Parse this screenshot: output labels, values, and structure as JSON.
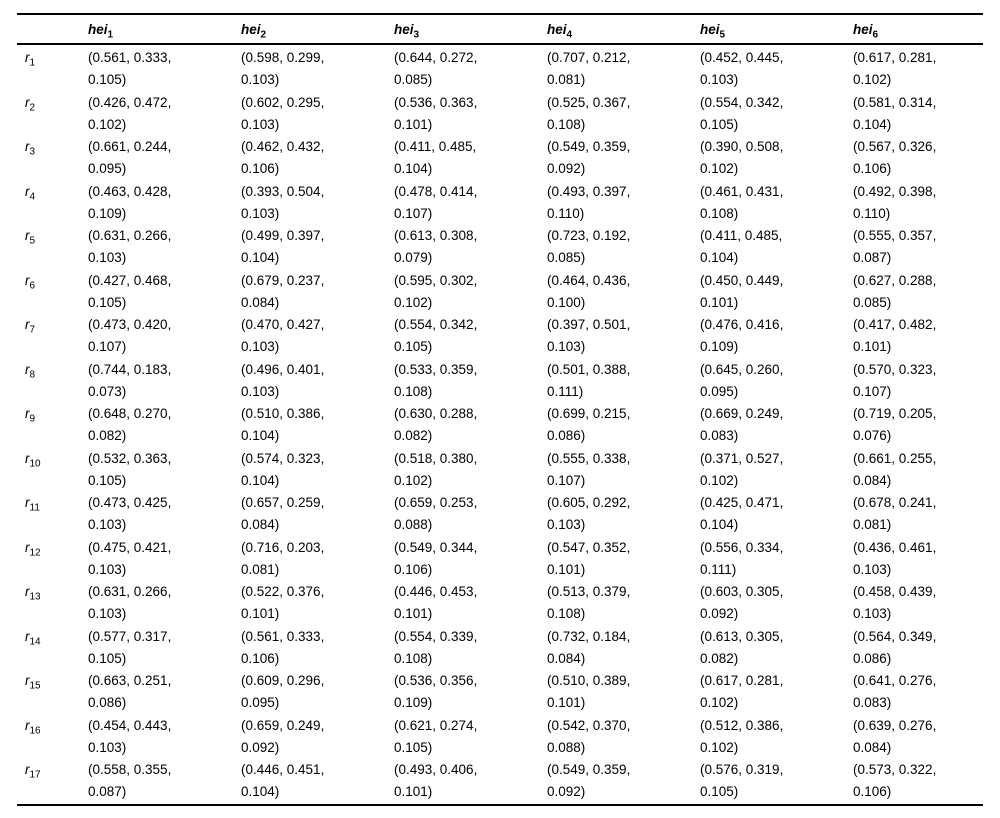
{
  "table": {
    "corner_label": "",
    "headers": [
      {
        "base": "hei",
        "sub": "1"
      },
      {
        "base": "hei",
        "sub": "2"
      },
      {
        "base": "hei",
        "sub": "3"
      },
      {
        "base": "hei",
        "sub": "4"
      },
      {
        "base": "hei",
        "sub": "5"
      },
      {
        "base": "hei",
        "sub": "6"
      }
    ],
    "rows": [
      {
        "label": {
          "base": "r",
          "sub": "1"
        },
        "cells": [
          [
            "0.561",
            "0.333",
            "0.105"
          ],
          [
            "0.598",
            "0.299",
            "0.103"
          ],
          [
            "0.644",
            "0.272",
            "0.085"
          ],
          [
            "0.707",
            "0.212",
            "0.081"
          ],
          [
            "0.452",
            "0.445",
            "0.103"
          ],
          [
            "0.617",
            "0.281",
            "0.102"
          ]
        ]
      },
      {
        "label": {
          "base": "r",
          "sub": "2"
        },
        "cells": [
          [
            "0.426",
            "0.472",
            "0.102"
          ],
          [
            "0.602",
            "0.295",
            "0.103"
          ],
          [
            "0.536",
            "0.363",
            "0.101"
          ],
          [
            "0.525",
            "0.367",
            "0.108"
          ],
          [
            "0.554",
            "0.342",
            "0.105"
          ],
          [
            "0.581",
            "0.314",
            "0.104"
          ]
        ]
      },
      {
        "label": {
          "base": "r",
          "sub": "3"
        },
        "cells": [
          [
            "0.661",
            "0.244",
            "0.095"
          ],
          [
            "0.462",
            "0.432",
            "0.106"
          ],
          [
            "0.411",
            "0.485",
            "0.104"
          ],
          [
            "0.549",
            "0.359",
            "0.092"
          ],
          [
            "0.390",
            "0.508",
            "0.102"
          ],
          [
            "0.567",
            "0.326",
            "0.106"
          ]
        ]
      },
      {
        "label": {
          "base": "r",
          "sub": "4"
        },
        "cells": [
          [
            "0.463",
            "0.428",
            "0.109"
          ],
          [
            "0.393",
            "0.504",
            "0.103"
          ],
          [
            "0.478",
            "0.414",
            "0.107"
          ],
          [
            "0.493",
            "0.397",
            "0.110"
          ],
          [
            "0.461",
            "0.431",
            "0.108"
          ],
          [
            "0.492",
            "0.398",
            "0.110"
          ]
        ]
      },
      {
        "label": {
          "base": "r",
          "sub": "5"
        },
        "cells": [
          [
            "0.631",
            "0.266",
            "0.103"
          ],
          [
            "0.499",
            "0.397",
            "0.104"
          ],
          [
            "0.613",
            "0.308",
            "0.079"
          ],
          [
            "0.723",
            "0.192",
            "0.085"
          ],
          [
            "0.411",
            "0.485",
            "0.104"
          ],
          [
            "0.555",
            "0.357",
            "0.087"
          ]
        ]
      },
      {
        "label": {
          "base": "r",
          "sub": "6"
        },
        "cells": [
          [
            "0.427",
            "0.468",
            "0.105"
          ],
          [
            "0.679",
            "0.237",
            "0.084"
          ],
          [
            "0.595",
            "0.302",
            "0.102"
          ],
          [
            "0.464",
            "0.436",
            "0.100"
          ],
          [
            "0.450",
            "0.449",
            "0.101"
          ],
          [
            "0.627",
            "0.288",
            "0.085"
          ]
        ]
      },
      {
        "label": {
          "base": "r",
          "sub": "7"
        },
        "cells": [
          [
            "0.473",
            "0.420",
            "0.107"
          ],
          [
            "0.470",
            "0.427",
            "0.103"
          ],
          [
            "0.554",
            "0.342",
            "0.105"
          ],
          [
            "0.397",
            "0.501",
            "0.103"
          ],
          [
            "0.476",
            "0.416",
            "0.109"
          ],
          [
            "0.417",
            "0.482",
            "0.101"
          ]
        ]
      },
      {
        "label": {
          "base": "r",
          "sub": "8"
        },
        "cells": [
          [
            "0.744",
            "0.183",
            "0.073"
          ],
          [
            "0.496",
            "0.401",
            "0.103"
          ],
          [
            "0.533",
            "0.359",
            "0.108"
          ],
          [
            "0.501",
            "0.388",
            "0.111"
          ],
          [
            "0.645",
            "0.260",
            "0.095"
          ],
          [
            "0.570",
            "0.323",
            "0.107"
          ]
        ]
      },
      {
        "label": {
          "base": "r",
          "sub": "9"
        },
        "cells": [
          [
            "0.648",
            "0.270",
            "0.082"
          ],
          [
            "0.510",
            "0.386",
            "0.104"
          ],
          [
            "0.630",
            "0.288",
            "0.082"
          ],
          [
            "0.699",
            "0.215",
            "0.086"
          ],
          [
            "0.669",
            "0.249",
            "0.083"
          ],
          [
            "0.719",
            "0.205",
            "0.076"
          ]
        ]
      },
      {
        "label": {
          "base": "r",
          "sub": "10"
        },
        "cells": [
          [
            "0.532",
            "0.363",
            "0.105"
          ],
          [
            "0.574",
            "0.323",
            "0.104"
          ],
          [
            "0.518",
            "0.380",
            "0.102"
          ],
          [
            "0.555",
            "0.338",
            "0.107"
          ],
          [
            "0.371",
            "0.527",
            "0.102"
          ],
          [
            "0.661",
            "0.255",
            "0.084"
          ]
        ]
      },
      {
        "label": {
          "base": "r",
          "sub": "11"
        },
        "cells": [
          [
            "0.473",
            "0.425",
            "0.103"
          ],
          [
            "0.657",
            "0.259",
            "0.084"
          ],
          [
            "0.659",
            "0.253",
            "0.088"
          ],
          [
            "0.605",
            "0.292",
            "0.103"
          ],
          [
            "0.425",
            "0.471",
            "0.104"
          ],
          [
            "0.678",
            "0.241",
            "0.081"
          ]
        ]
      },
      {
        "label": {
          "base": "r",
          "sub": "12"
        },
        "cells": [
          [
            "0.475",
            "0.421",
            "0.103"
          ],
          [
            "0.716",
            "0.203",
            "0.081"
          ],
          [
            "0.549",
            "0.344",
            "0.106"
          ],
          [
            "0.547",
            "0.352",
            "0.101"
          ],
          [
            "0.556",
            "0.334",
            "0.111"
          ],
          [
            "0.436",
            "0.461",
            "0.103"
          ]
        ]
      },
      {
        "label": {
          "base": "r",
          "sub": "13"
        },
        "cells": [
          [
            "0.631",
            "0.266",
            "0.103"
          ],
          [
            "0.522",
            "0.376",
            "0.101"
          ],
          [
            "0.446",
            "0.453",
            "0.101"
          ],
          [
            "0.513",
            "0.379",
            "0.108"
          ],
          [
            "0.603",
            "0.305",
            "0.092"
          ],
          [
            "0.458",
            "0.439",
            "0.103"
          ]
        ]
      },
      {
        "label": {
          "base": "r",
          "sub": "14"
        },
        "cells": [
          [
            "0.577",
            "0.317",
            "0.105"
          ],
          [
            "0.561",
            "0.333",
            "0.106"
          ],
          [
            "0.554",
            "0.339",
            "0.108"
          ],
          [
            "0.732",
            "0.184",
            "0.084"
          ],
          [
            "0.613",
            "0.305",
            "0.082"
          ],
          [
            "0.564",
            "0.349",
            "0.086"
          ]
        ]
      },
      {
        "label": {
          "base": "r",
          "sub": "15"
        },
        "cells": [
          [
            "0.663",
            "0.251",
            "0.086"
          ],
          [
            "0.609",
            "0.296",
            "0.095"
          ],
          [
            "0.536",
            "0.356",
            "0.109"
          ],
          [
            "0.510",
            "0.389",
            "0.101"
          ],
          [
            "0.617",
            "0.281",
            "0.102"
          ],
          [
            "0.641",
            "0.276",
            "0.083"
          ]
        ]
      },
      {
        "label": {
          "base": "r",
          "sub": "16"
        },
        "cells": [
          [
            "0.454",
            "0.443",
            "0.103"
          ],
          [
            "0.659",
            "0.249",
            "0.092"
          ],
          [
            "0.621",
            "0.274",
            "0.105"
          ],
          [
            "0.542",
            "0.370",
            "0.088"
          ],
          [
            "0.512",
            "0.386",
            "0.102"
          ],
          [
            "0.639",
            "0.276",
            "0.084"
          ]
        ]
      },
      {
        "label": {
          "base": "r",
          "sub": "17"
        },
        "cells": [
          [
            "0.558",
            "0.355",
            "0.087"
          ],
          [
            "0.446",
            "0.451",
            "0.104"
          ],
          [
            "0.493",
            "0.406",
            "0.101"
          ],
          [
            "0.549",
            "0.359",
            "0.092"
          ],
          [
            "0.576",
            "0.319",
            "0.105"
          ],
          [
            "0.573",
            "0.322",
            "0.106"
          ]
        ]
      }
    ]
  },
  "colors": {
    "text": "#000000",
    "background": "#ffffff",
    "rule": "#000000"
  }
}
